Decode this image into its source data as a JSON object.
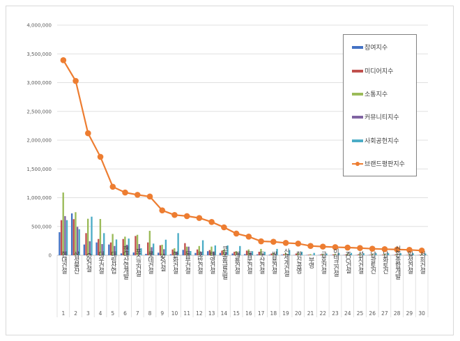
{
  "chart_data": {
    "type": "bar+line",
    "ylim": [
      0,
      4000000
    ],
    "yticks": [
      "0",
      "500,000",
      "1,000,000",
      "1,500,000",
      "2,000,000",
      "2,500,000",
      "3,000,000",
      "3,500,000",
      "4,000,000"
    ],
    "grid": true,
    "legend_position": "right",
    "categories": [
      "현대건설",
      "삼성물산",
      "GS건설",
      "대우건설",
      "대림산업",
      "현대산업개발",
      "포스코건설",
      "롯데건설",
      "SK건설",
      "한화건설",
      "동부건설",
      "호반건설",
      "태영건설",
      "코오롱글로벌",
      "계룡건설",
      "동문건설",
      "두산건설",
      "쌍용건설",
      "신세계건설",
      "한신공영",
      "부영",
      "금호건설",
      "이테크건설",
      "KCC건설",
      "성지건설",
      "남광토건",
      "남화토건",
      "신원종합개발",
      "일성건설",
      "서희건설"
    ],
    "ranks": [
      "1",
      "2",
      "3",
      "4",
      "5",
      "6",
      "7",
      "8",
      "9",
      "10",
      "11",
      "12",
      "13",
      "14",
      "15",
      "16",
      "17",
      "18",
      "19",
      "20",
      "21",
      "22",
      "23",
      "24",
      "25",
      "26",
      "27",
      "28",
      "29",
      "30"
    ],
    "series": [
      {
        "name": "참여지수",
        "type": "bar",
        "color": "#4472C4",
        "values": [
          400000,
          727000,
          186000,
          222000,
          186000,
          32000,
          48000,
          24000,
          44000,
          16000,
          93000,
          40000,
          70000,
          40000,
          30000,
          20000,
          15000,
          10000,
          10000,
          5000,
          5000,
          5000,
          5000,
          4000,
          4000,
          4000,
          3000,
          3000,
          3000,
          3000
        ]
      },
      {
        "name": "미디어지수",
        "type": "bar",
        "color": "#C0504D",
        "values": [
          610000,
          627000,
          384000,
          282000,
          222000,
          282000,
          335000,
          222000,
          173000,
          100000,
          210000,
          100000,
          90000,
          80000,
          60000,
          80000,
          60000,
          30000,
          20000,
          30000,
          10000,
          15000,
          15000,
          12000,
          12000,
          10000,
          10000,
          10000,
          8000,
          8000
        ]
      },
      {
        "name": "소통지수",
        "type": "bar",
        "color": "#9BBB59",
        "values": [
          1090000,
          748000,
          634000,
          630000,
          370000,
          323000,
          355000,
          424000,
          182000,
          121000,
          149000,
          160000,
          150000,
          100000,
          70000,
          100000,
          110000,
          40000,
          40000,
          40000,
          20000,
          25000,
          25000,
          25000,
          25000,
          20000,
          25000,
          20000,
          20000,
          15000
        ]
      },
      {
        "name": "커뮤니티지수",
        "type": "bar",
        "color": "#8064A2",
        "values": [
          680000,
          493000,
          242000,
          194000,
          161000,
          182000,
          194000,
          140000,
          105000,
          60000,
          149000,
          60000,
          60000,
          50000,
          40000,
          50000,
          30000,
          20000,
          10000,
          10000,
          5000,
          5000,
          5000,
          5000,
          5000,
          5000,
          5000,
          5000,
          5000,
          5000
        ]
      },
      {
        "name": "사회공헌지수",
        "type": "bar",
        "color": "#4BACC6",
        "values": [
          610000,
          452000,
          670000,
          384000,
          274000,
          290000,
          121000,
          202000,
          270000,
          384000,
          73000,
          260000,
          170000,
          170000,
          160000,
          70000,
          60000,
          110000,
          90000,
          60000,
          40000,
          30000,
          40000,
          40000,
          35000,
          35000,
          35000,
          35000,
          35000,
          30000
        ]
      },
      {
        "name": "브랜드평판지수",
        "type": "line",
        "color": "#ED7D31",
        "values": [
          3390000,
          3030000,
          2120000,
          1710000,
          1190000,
          1090000,
          1050000,
          1020000,
          780000,
          700000,
          680000,
          647000,
          578000,
          485000,
          376000,
          323000,
          242000,
          234000,
          214000,
          202000,
          161000,
          150000,
          140000,
          133000,
          125000,
          113000,
          105000,
          100000,
          93000,
          81000
        ]
      }
    ]
  }
}
